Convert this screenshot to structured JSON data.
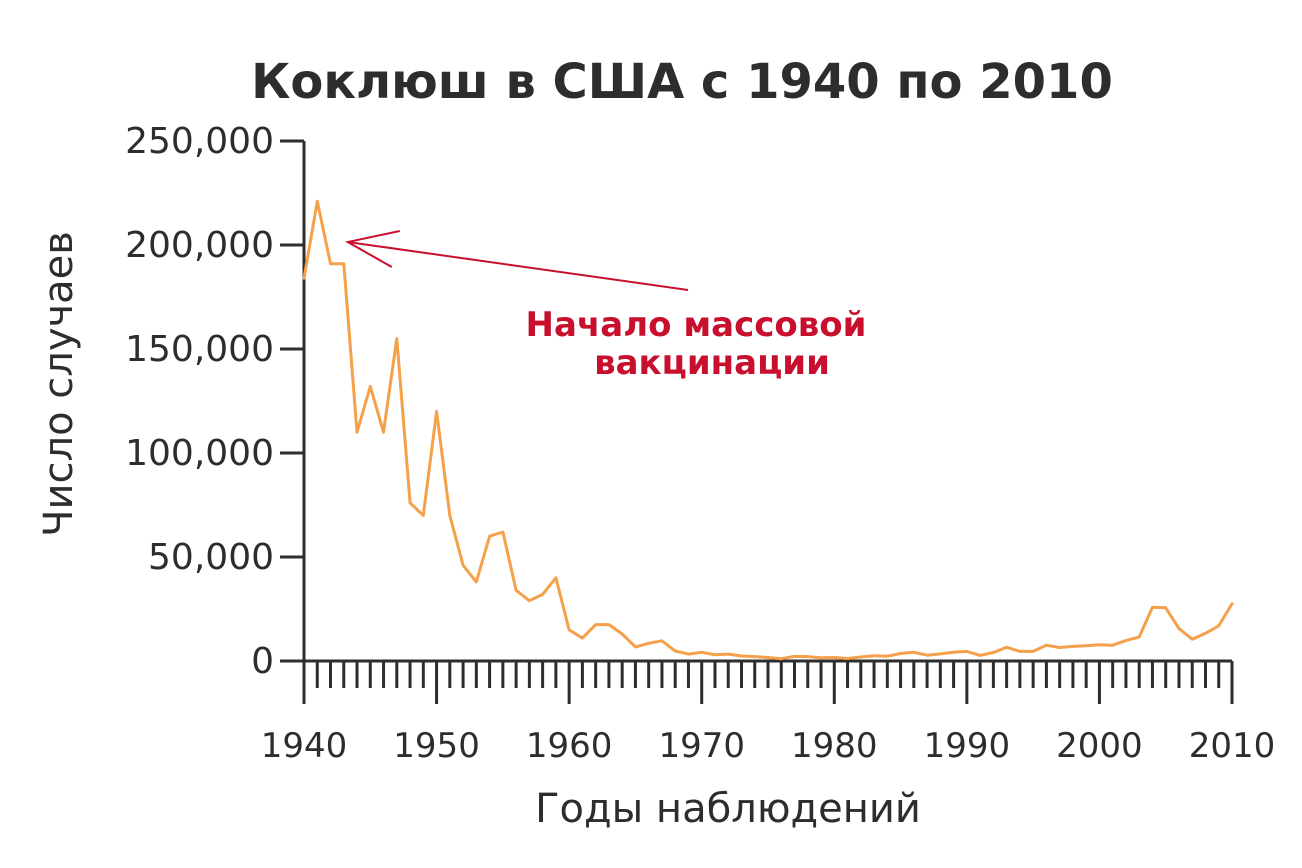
{
  "chart_data": {
    "type": "line",
    "title": "Коклюш в США с 1940 по 2010",
    "xlabel": "Годы наблюдений",
    "ylabel": "Число случаев",
    "xlim": [
      1940,
      2010
    ],
    "ylim": [
      0,
      250000
    ],
    "x_ticks": [
      "1940",
      "1950",
      "1960",
      "1970",
      "1980",
      "1990",
      "2000",
      "2010"
    ],
    "y_ticks": [
      "0",
      "50,000",
      "100,000",
      "150,000",
      "200,000",
      "250,000"
    ],
    "grid": false,
    "series": [
      {
        "color": "#f5a04a",
        "x": [
          1940,
          1941,
          1942,
          1943,
          1944,
          1945,
          1946,
          1947,
          1948,
          1949,
          1950,
          1951,
          1952,
          1953,
          1954,
          1955,
          1956,
          1957,
          1958,
          1959,
          1960,
          1961,
          1962,
          1963,
          1964,
          1965,
          1966,
          1967,
          1968,
          1969,
          1970,
          1971,
          1972,
          1973,
          1974,
          1975,
          1976,
          1977,
          1978,
          1979,
          1980,
          1981,
          1982,
          1983,
          1984,
          1985,
          1986,
          1987,
          1988,
          1989,
          1990,
          1991,
          1992,
          1993,
          1994,
          1995,
          1996,
          1997,
          1998,
          1999,
          2000,
          2001,
          2002,
          2003,
          2004,
          2005,
          2006,
          2007,
          2008,
          2009,
          2010
        ],
        "y": [
          184000,
          221000,
          191000,
          191000,
          110000,
          132000,
          110000,
          155000,
          76000,
          70000,
          120000,
          70000,
          46000,
          38000,
          60000,
          62000,
          34000,
          29000,
          32000,
          40000,
          15000,
          11000,
          17500,
          17500,
          13000,
          6800,
          8500,
          9700,
          4800,
          3300,
          4200,
          3000,
          3300,
          2400,
          2100,
          1700,
          1100,
          2200,
          2100,
          1600,
          1700,
          1200,
          1900,
          2500,
          2300,
          3600,
          4200,
          2800,
          3400,
          4200,
          4600,
          2700,
          4100,
          6600,
          4600,
          4600,
          7600,
          6500,
          7000,
          7300,
          7800,
          7600,
          9800,
          11600,
          25800,
          25600,
          15600,
          10500,
          13300,
          16900,
          27500
        ]
      }
    ],
    "annotation": {
      "lines": [
        "Начало массовой",
        "вакцинации"
      ],
      "target_year": 1943,
      "target_value": 200000,
      "color": "#c8102e"
    },
    "axis_color": "#2d2d2d"
  }
}
